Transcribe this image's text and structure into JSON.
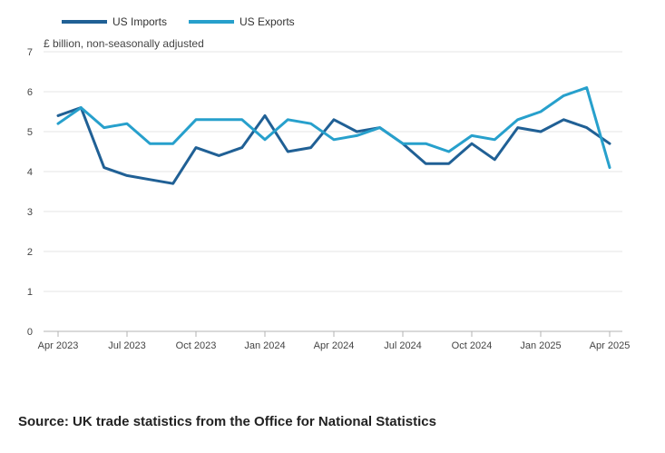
{
  "chart_data": {
    "type": "line",
    "unit_label": "£ billion, non-seasonally adjusted",
    "ylim": [
      0,
      7
    ],
    "yticks": [
      "0",
      "1",
      "2",
      "3",
      "4",
      "5",
      "6",
      "7"
    ],
    "x_tick_labels": [
      "Apr 2023",
      "Jul 2023",
      "Oct 2023",
      "Jan 2024",
      "Apr 2024",
      "Jul 2024",
      "Oct 2024",
      "Jan 2025",
      "Apr 2025"
    ],
    "x": [
      "Apr 2023",
      "May 2023",
      "Jun 2023",
      "Jul 2023",
      "Aug 2023",
      "Sep 2023",
      "Oct 2023",
      "Nov 2023",
      "Dec 2023",
      "Jan 2024",
      "Feb 2024",
      "Mar 2024",
      "Apr 2024",
      "May 2024",
      "Jun 2024",
      "Jul 2024",
      "Aug 2024",
      "Sep 2024",
      "Oct 2024",
      "Nov 2024",
      "Dec 2024",
      "Jan 2025",
      "Feb 2025",
      "Mar 2025",
      "Apr 2025"
    ],
    "grid": true,
    "legend_position": "top-left",
    "series": [
      {
        "name": "US Imports",
        "color": "#206095",
        "values": [
          5.4,
          5.6,
          4.1,
          3.9,
          3.8,
          3.7,
          4.6,
          4.4,
          4.6,
          5.4,
          4.5,
          4.6,
          5.3,
          5.0,
          5.1,
          4.7,
          4.2,
          4.2,
          4.7,
          4.3,
          5.1,
          5.0,
          5.3,
          5.1,
          4.7
        ]
      },
      {
        "name": "US Exports",
        "color": "#27a0cc",
        "values": [
          5.2,
          5.6,
          5.1,
          5.2,
          4.7,
          4.7,
          5.3,
          5.3,
          5.3,
          4.8,
          5.3,
          5.2,
          4.8,
          4.9,
          5.1,
          4.7,
          4.7,
          4.5,
          4.9,
          4.8,
          5.3,
          5.5,
          5.9,
          6.1,
          4.1
        ]
      }
    ]
  },
  "source": "Source: UK trade statistics from the Office for National Statistics"
}
